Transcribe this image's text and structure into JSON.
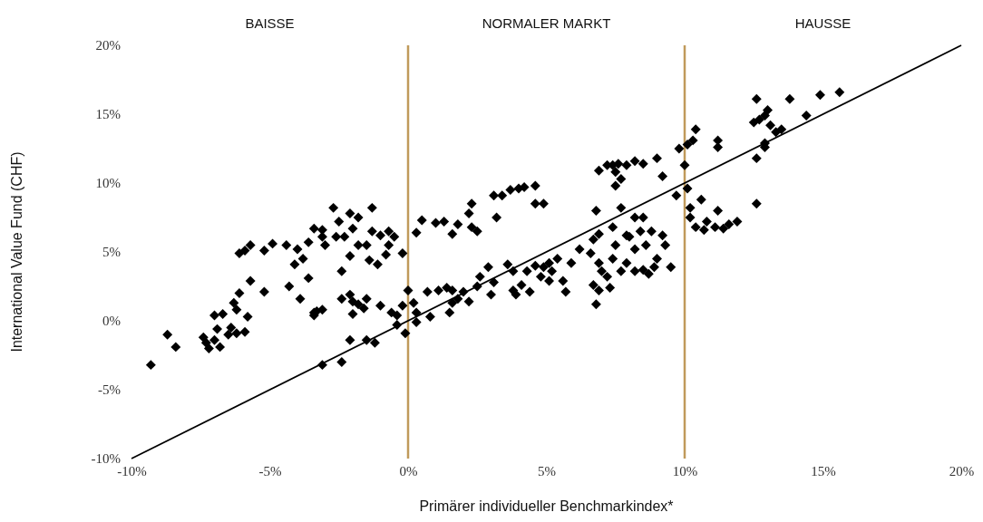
{
  "chart_data": {
    "type": "scatter",
    "xlabel": "Primärer individueller Benchmarkindex*",
    "ylabel": "International Value Fund (CHF)",
    "xlim": [
      -10,
      20
    ],
    "ylim": [
      -10,
      20
    ],
    "xticks": [
      {
        "value": -10,
        "label": "-10%"
      },
      {
        "value": -5,
        "label": "-5%"
      },
      {
        "value": 0,
        "label": "0%"
      },
      {
        "value": 5,
        "label": "5%"
      },
      {
        "value": 10,
        "label": "10%"
      },
      {
        "value": 15,
        "label": "15%"
      },
      {
        "value": 20,
        "label": "20%"
      }
    ],
    "yticks": [
      {
        "value": -10,
        "label": "-10%"
      },
      {
        "value": -5,
        "label": "-5%"
      },
      {
        "value": 0,
        "label": "0%"
      },
      {
        "value": 5,
        "label": "5%"
      },
      {
        "value": 10,
        "label": "10%"
      },
      {
        "value": 15,
        "label": "15%"
      },
      {
        "value": 20,
        "label": "20%"
      }
    ],
    "grid": false,
    "annotations": [
      "BAISSE",
      "NORMALER MARKT",
      "HAUSSE"
    ],
    "ref_lines": [
      {
        "axis": "x",
        "value": 0,
        "color": "#c09a5b"
      },
      {
        "axis": "x",
        "value": 10,
        "color": "#c09a5b"
      }
    ],
    "series": [
      {
        "marker": "diamond",
        "color": "#000000",
        "x": [
          -9.3,
          -8.7,
          -8.4,
          -7.4,
          -7.3,
          -7.2,
          -7.0,
          -6.9,
          -7.0,
          -6.7,
          -6.5,
          -6.8,
          -6.4,
          -6.2,
          -5.9,
          -5.8,
          -6.2,
          -6.3,
          -6.1,
          -5.7,
          -5.2,
          -5.9,
          -6.1,
          -5.7,
          -5.2,
          -4.9,
          -4.4,
          -4.0,
          -3.6,
          -3.8,
          -4.1,
          -3.6,
          -4.3,
          -3.9,
          -3.4,
          -3.3,
          -3.4,
          -3.1,
          -3.1,
          -3.0,
          -3.4,
          -2.6,
          -2.3,
          -2.1,
          -2.4,
          -2.4,
          -2.1,
          -2.0,
          -1.8,
          -1.6,
          -2.0,
          -2.1,
          -1.5,
          -1.2,
          -3.1,
          -2.4,
          -1.0,
          -0.6,
          -0.4,
          -0.4,
          -0.1,
          -1.5,
          -1.8,
          -2.0,
          -2.1,
          -1.8,
          -1.3,
          -1.5,
          -1.3,
          -1.0,
          -1.4,
          -1.1,
          -0.8,
          -0.7,
          -0.2,
          -0.5,
          -0.7,
          -2.7,
          -2.5,
          -3.1,
          0.3,
          0.5,
          1.0,
          1.3,
          1.6,
          1.8,
          2.3,
          2.2,
          2.3,
          2.5,
          3.1,
          3.4,
          3.7,
          4.0,
          4.2,
          4.6,
          4.6,
          4.9,
          3.2,
          0.0,
          0.2,
          0.3,
          0.3,
          -0.2,
          0.8,
          0.7,
          1.1,
          1.4,
          1.6,
          1.6,
          1.5,
          1.8,
          2.0,
          2.2,
          2.5,
          2.6,
          2.9,
          3.0,
          3.1,
          3.6,
          3.8,
          3.8,
          3.9,
          4.1,
          4.3,
          4.4,
          4.6,
          4.8,
          4.9,
          5.1,
          5.1,
          5.2,
          5.4,
          5.6,
          5.7,
          5.9,
          6.2,
          6.6,
          6.7,
          6.9,
          7.0,
          6.9,
          7.2,
          7.4,
          7.5,
          7.7,
          7.9,
          8.0,
          8.2,
          8.4,
          8.5,
          8.6,
          8.8,
          8.9,
          9.0,
          9.2,
          9.3,
          9.5,
          8.2,
          8.5,
          8.7,
          6.7,
          6.8,
          7.3,
          7.9,
          7.4,
          6.9,
          7.7,
          8.2,
          6.8,
          6.9,
          7.2,
          7.4,
          7.6,
          7.9,
          7.5,
          7.7,
          7.5,
          8.2,
          8.5,
          9.0,
          9.2,
          9.8,
          10.1,
          10.3,
          10.4,
          10.0,
          9.7,
          10.2,
          10.6,
          10.4,
          10.7,
          10.2,
          10.8,
          11.1,
          11.4,
          11.6,
          11.9,
          11.2,
          11.2,
          11.2,
          10.1,
          12.6,
          12.5,
          12.7,
          12.9,
          13.1,
          13.3,
          12.9,
          13.5,
          13.8,
          12.6,
          12.9,
          12.6,
          14.4,
          14.9,
          15.6,
          13.0
        ],
        "values": [
          -3.2,
          -1.0,
          -1.9,
          -1.2,
          -1.6,
          -2.0,
          -1.4,
          -0.6,
          0.4,
          0.5,
          -1.0,
          -1.9,
          -0.5,
          -0.9,
          -0.8,
          0.3,
          0.8,
          1.3,
          2.0,
          2.9,
          2.1,
          5.1,
          4.9,
          5.5,
          5.1,
          5.6,
          5.5,
          5.2,
          5.7,
          4.5,
          4.1,
          3.1,
          2.5,
          1.6,
          0.6,
          0.7,
          0.4,
          0.8,
          6.1,
          5.5,
          6.7,
          6.1,
          6.1,
          4.7,
          3.6,
          1.6,
          1.9,
          1.4,
          1.2,
          0.9,
          0.5,
          -1.4,
          -1.4,
          -1.6,
          -3.2,
          -3.0,
          1.1,
          0.6,
          0.4,
          -0.3,
          -0.9,
          1.6,
          5.5,
          6.7,
          7.8,
          7.5,
          6.5,
          5.5,
          8.2,
          6.2,
          4.4,
          4.1,
          4.8,
          5.5,
          4.9,
          6.1,
          6.5,
          8.2,
          7.2,
          6.6,
          6.4,
          7.3,
          7.1,
          7.2,
          6.3,
          7.0,
          6.8,
          7.8,
          8.5,
          6.5,
          9.1,
          9.1,
          9.5,
          9.6,
          9.7,
          9.8,
          8.5,
          8.5,
          7.5,
          2.2,
          1.3,
          0.6,
          -0.1,
          1.1,
          0.3,
          2.1,
          2.2,
          2.4,
          2.2,
          1.3,
          0.6,
          1.6,
          2.1,
          1.4,
          2.5,
          3.2,
          3.9,
          1.9,
          2.8,
          4.1,
          3.6,
          2.2,
          1.9,
          2.6,
          3.6,
          2.1,
          4.0,
          3.2,
          3.9,
          4.2,
          2.9,
          3.6,
          4.5,
          2.9,
          2.1,
          4.2,
          5.2,
          4.9,
          5.9,
          4.2,
          3.6,
          2.2,
          3.2,
          4.5,
          5.5,
          3.6,
          4.2,
          6.1,
          5.2,
          6.5,
          7.5,
          5.5,
          6.5,
          3.9,
          4.5,
          6.2,
          5.5,
          3.9,
          3.6,
          3.7,
          3.4,
          2.6,
          1.2,
          2.4,
          6.2,
          6.8,
          6.3,
          8.2,
          7.5,
          8.0,
          10.9,
          11.3,
          11.3,
          11.4,
          11.3,
          10.8,
          10.3,
          9.8,
          11.6,
          11.4,
          11.8,
          10.5,
          12.5,
          12.8,
          13.1,
          13.9,
          11.3,
          9.1,
          8.2,
          8.8,
          6.8,
          6.6,
          7.5,
          7.2,
          6.8,
          6.7,
          7.0,
          7.2,
          13.1,
          12.6,
          8.0,
          9.6,
          16.1,
          14.4,
          14.6,
          14.9,
          14.2,
          13.7,
          12.9,
          13.9,
          16.1,
          11.8,
          12.6,
          8.5,
          14.9,
          16.4,
          16.6,
          15.3
        ]
      },
      {
        "type": "line",
        "color": "#000000",
        "x": [
          -10,
          20
        ],
        "values": [
          -10,
          20
        ]
      }
    ]
  }
}
